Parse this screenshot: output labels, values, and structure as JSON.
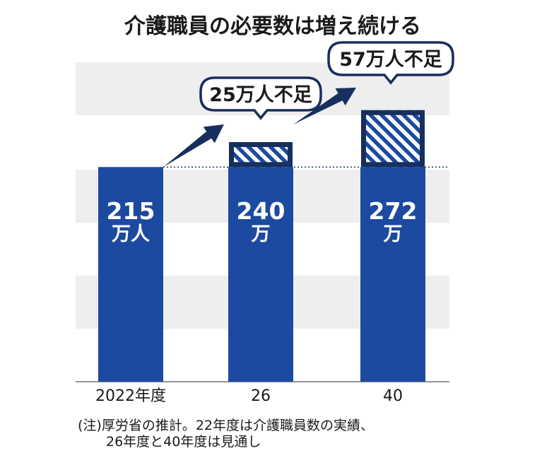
{
  "chart_data": {
    "type": "bar",
    "title": "介護職員の必要数は増え続ける",
    "categories": [
      "2022年度",
      "26",
      "40"
    ],
    "values": [
      215,
      240,
      272
    ],
    "unit": "万人",
    "bar_value_labels": [
      {
        "number": "215",
        "unit": "万人"
      },
      {
        "number": "240",
        "unit": "万"
      },
      {
        "number": "272",
        "unit": "万"
      }
    ],
    "shortfall": [
      {
        "category": "26",
        "value": 25,
        "label": "25万人不足"
      },
      {
        "category": "40",
        "value": 57,
        "label": "57万人不足"
      }
    ],
    "baseline_value": 215,
    "ylim": [
      0,
      320
    ],
    "grid": "horizontal alternating bands",
    "note_lines": [
      "(注)厚労省の推計。22年度は介護職員数の実績、",
      "26年度と40年度は見通し"
    ]
  },
  "colors": {
    "bar": "#1c4aa0",
    "outline": "#172f5d",
    "band": "#eeeeee",
    "text": "#1a1a1a"
  }
}
